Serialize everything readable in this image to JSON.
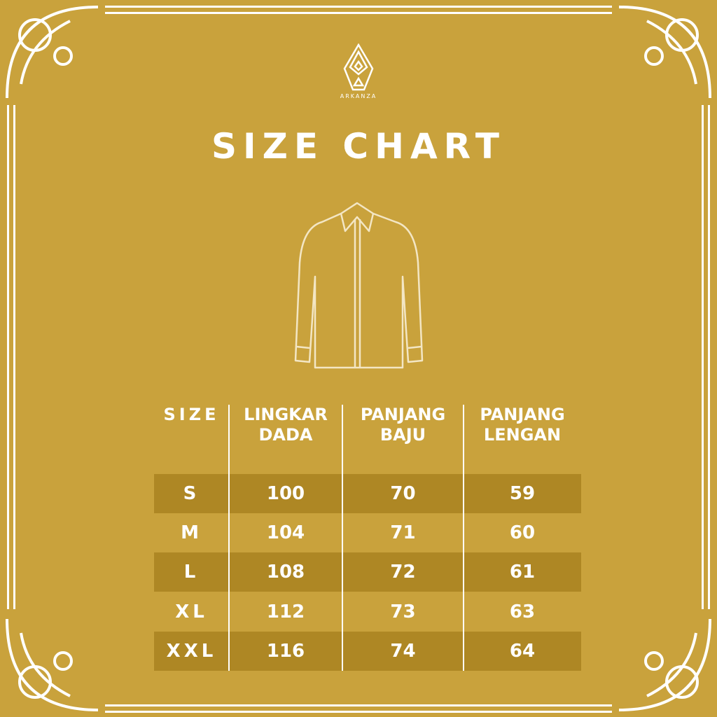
{
  "brand": {
    "name": "ARKANZA",
    "icon": "diamond-batik-logo-icon"
  },
  "title": "SIZE CHART",
  "illustration": "shirt-icon",
  "colors": {
    "background": "#C9A23C",
    "stripe": "#AE8724",
    "text": "#FFFFFF"
  },
  "table": {
    "headers": [
      {
        "line1": "SIZE",
        "line2": ""
      },
      {
        "line1": "LINGKAR",
        "line2": "DADA"
      },
      {
        "line1": "PANJANG",
        "line2": "BAJU"
      },
      {
        "line1": "PANJANG",
        "line2": "LENGAN"
      }
    ],
    "rows": [
      [
        "S",
        "100",
        "70",
        "59"
      ],
      [
        "M",
        "104",
        "71",
        "60"
      ],
      [
        "L",
        "108",
        "72",
        "61"
      ],
      [
        "XL",
        "112",
        "73",
        "63"
      ],
      [
        "XXL",
        "116",
        "74",
        "64"
      ]
    ]
  }
}
